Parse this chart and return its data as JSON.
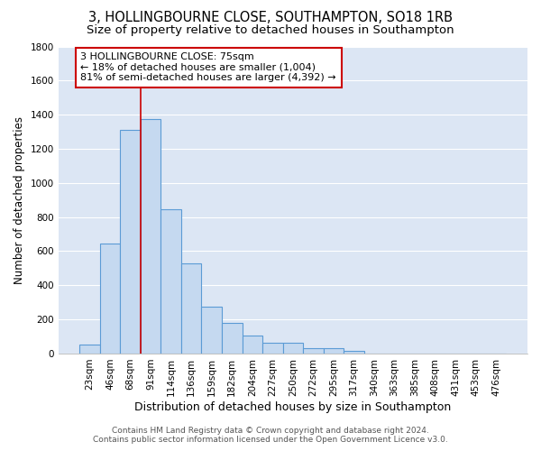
{
  "title": "3, HOLLINGBOURNE CLOSE, SOUTHAMPTON, SO18 1RB",
  "subtitle": "Size of property relative to detached houses in Southampton",
  "xlabel": "Distribution of detached houses by size in Southampton",
  "ylabel": "Number of detached properties",
  "categories": [
    "23sqm",
    "46sqm",
    "68sqm",
    "91sqm",
    "114sqm",
    "136sqm",
    "159sqm",
    "182sqm",
    "204sqm",
    "227sqm",
    "250sqm",
    "272sqm",
    "295sqm",
    "317sqm",
    "340sqm",
    "363sqm",
    "385sqm",
    "408sqm",
    "431sqm",
    "453sqm",
    "476sqm"
  ],
  "values": [
    55,
    645,
    1310,
    1375,
    845,
    530,
    275,
    180,
    105,
    65,
    65,
    30,
    30,
    15,
    0,
    0,
    0,
    0,
    0,
    0,
    0
  ],
  "bar_color": "#c5d9f0",
  "bar_edge_color": "#5b9bd5",
  "vline_x": 2.5,
  "vline_color": "#cc0000",
  "annotation_text": "3 HOLLINGBOURNE CLOSE: 75sqm\n← 18% of detached houses are smaller (1,004)\n81% of semi-detached houses are larger (4,392) →",
  "annotation_box_color": "#ffffff",
  "annotation_box_edge_color": "#cc0000",
  "ylim": [
    0,
    1800
  ],
  "yticks": [
    0,
    200,
    400,
    600,
    800,
    1000,
    1200,
    1400,
    1600,
    1800
  ],
  "bg_color": "#dce6f4",
  "grid_color": "#ffffff",
  "footer_line1": "Contains HM Land Registry data © Crown copyright and database right 2024.",
  "footer_line2": "Contains public sector information licensed under the Open Government Licence v3.0.",
  "title_fontsize": 10.5,
  "subtitle_fontsize": 9.5,
  "xlabel_fontsize": 9,
  "ylabel_fontsize": 8.5,
  "tick_fontsize": 7.5,
  "footer_fontsize": 6.5
}
